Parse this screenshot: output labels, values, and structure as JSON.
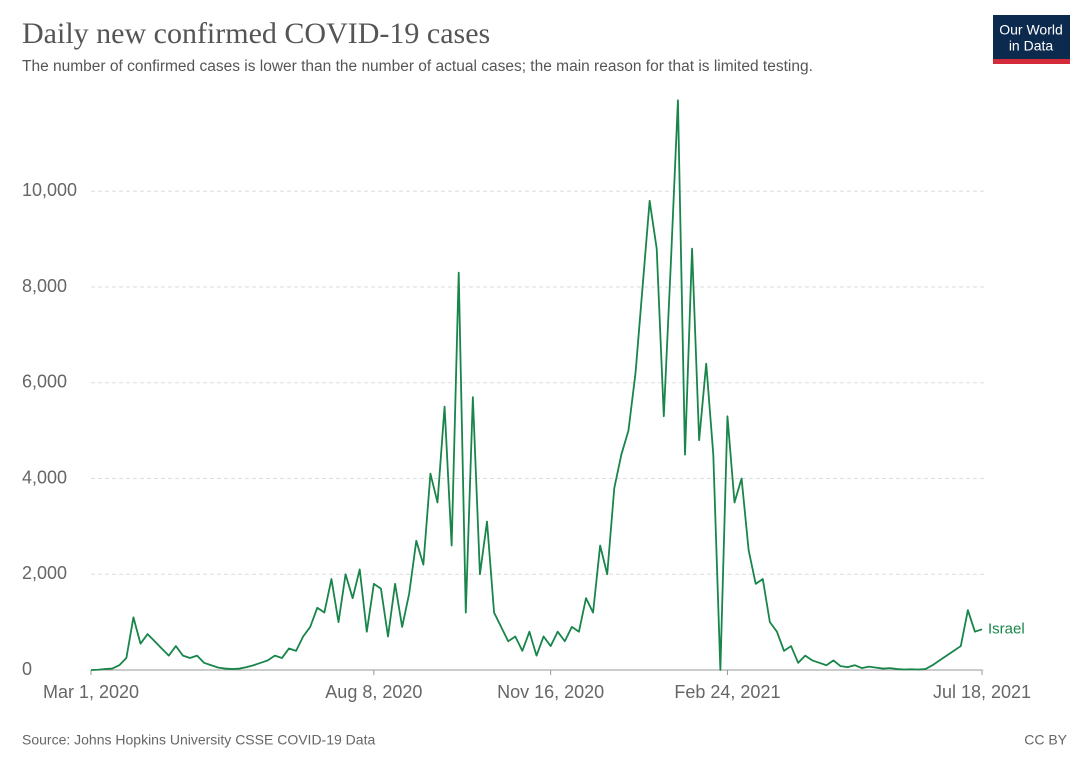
{
  "chart_data": {
    "type": "line",
    "title": "Daily new confirmed COVID-19 cases",
    "subtitle": "The number of confirmed cases is lower than the number of actual cases; the main reason for that is limited testing.",
    "source": "Source: Johns Hopkins University CSSE COVID-19 Data",
    "license": "CC BY",
    "logo": [
      "Our World",
      "in Data"
    ],
    "x": [
      "2020-03-01",
      "2020-03-05",
      "2020-03-09",
      "2020-03-13",
      "2020-03-17",
      "2020-03-21",
      "2020-03-25",
      "2020-03-29",
      "2020-04-02",
      "2020-04-06",
      "2020-04-10",
      "2020-04-14",
      "2020-04-18",
      "2020-04-22",
      "2020-04-26",
      "2020-04-30",
      "2020-05-04",
      "2020-05-08",
      "2020-05-12",
      "2020-05-16",
      "2020-05-20",
      "2020-05-24",
      "2020-05-28",
      "2020-06-01",
      "2020-06-05",
      "2020-06-09",
      "2020-06-13",
      "2020-06-17",
      "2020-06-21",
      "2020-06-25",
      "2020-06-29",
      "2020-07-03",
      "2020-07-07",
      "2020-07-11",
      "2020-07-15",
      "2020-07-19",
      "2020-07-23",
      "2020-07-27",
      "2020-07-31",
      "2020-08-04",
      "2020-08-08",
      "2020-08-12",
      "2020-08-16",
      "2020-08-20",
      "2020-08-24",
      "2020-08-28",
      "2020-09-01",
      "2020-09-05",
      "2020-09-09",
      "2020-09-13",
      "2020-09-17",
      "2020-09-21",
      "2020-09-25",
      "2020-09-29",
      "2020-10-03",
      "2020-10-07",
      "2020-10-11",
      "2020-10-15",
      "2020-10-19",
      "2020-10-23",
      "2020-10-27",
      "2020-10-31",
      "2020-11-04",
      "2020-11-08",
      "2020-11-12",
      "2020-11-16",
      "2020-11-20",
      "2020-11-24",
      "2020-11-28",
      "2020-12-02",
      "2020-12-06",
      "2020-12-10",
      "2020-12-14",
      "2020-12-18",
      "2020-12-22",
      "2020-12-26",
      "2020-12-30",
      "2021-01-03",
      "2021-01-07",
      "2021-01-11",
      "2021-01-15",
      "2021-01-19",
      "2021-01-23",
      "2021-01-27",
      "2021-01-31",
      "2021-02-04",
      "2021-02-08",
      "2021-02-12",
      "2021-02-16",
      "2021-02-20",
      "2021-02-24",
      "2021-02-28",
      "2021-03-04",
      "2021-03-08",
      "2021-03-12",
      "2021-03-16",
      "2021-03-20",
      "2021-03-24",
      "2021-03-28",
      "2021-04-01",
      "2021-04-05",
      "2021-04-09",
      "2021-04-13",
      "2021-04-17",
      "2021-04-21",
      "2021-04-25",
      "2021-04-29",
      "2021-05-03",
      "2021-05-07",
      "2021-05-11",
      "2021-05-15",
      "2021-05-19",
      "2021-05-23",
      "2021-05-27",
      "2021-05-31",
      "2021-06-04",
      "2021-06-08",
      "2021-06-12",
      "2021-06-16",
      "2021-06-20",
      "2021-06-24",
      "2021-06-28",
      "2021-07-02",
      "2021-07-06",
      "2021-07-10",
      "2021-07-14",
      "2021-07-18"
    ],
    "series": [
      {
        "name": "Israel",
        "color": "#18854a",
        "values": [
          0,
          5,
          20,
          30,
          100,
          250,
          1100,
          550,
          750,
          600,
          450,
          300,
          500,
          300,
          250,
          300,
          150,
          100,
          50,
          30,
          20,
          30,
          60,
          100,
          150,
          200,
          300,
          250,
          450,
          400,
          700,
          900,
          1300,
          1200,
          1900,
          1000,
          2000,
          1500,
          2100,
          800,
          1800,
          1700,
          700,
          1800,
          900,
          1600,
          2700,
          2200,
          4100,
          3500,
          5500,
          2600,
          8300,
          1200,
          5700,
          2000,
          3100,
          1200,
          900,
          600,
          700,
          400,
          800,
          300,
          700,
          500,
          800,
          600,
          900,
          800,
          1500,
          1200,
          2600,
          2000,
          3800,
          4500,
          5000,
          6200,
          8000,
          9800,
          8800,
          5300,
          8500,
          11900,
          4500,
          8800,
          4800,
          6400,
          4500,
          0,
          5300,
          3500,
          4000,
          2500,
          1800,
          1900,
          1000,
          800,
          400,
          500,
          150,
          300,
          200,
          150,
          100,
          200,
          80,
          60,
          100,
          40,
          70,
          50,
          30,
          40,
          20,
          10,
          15,
          10,
          20,
          100,
          200,
          300,
          400,
          500,
          1250,
          800,
          850
        ]
      }
    ],
    "xlim": [
      "2020-03-01",
      "2021-07-18"
    ],
    "xticks": [
      {
        "value": "2020-03-01",
        "label": "Mar 1, 2020"
      },
      {
        "value": "2020-08-08",
        "label": "Aug 8, 2020"
      },
      {
        "value": "2020-11-16",
        "label": "Nov 16, 2020"
      },
      {
        "value": "2021-02-24",
        "label": "Feb 24, 2021"
      },
      {
        "value": "2021-07-18",
        "label": "Jul 18, 2021"
      }
    ],
    "ylim": [
      0,
      12000
    ],
    "yticks": [
      0,
      {
        "value": 2000,
        "label": "2,000"
      },
      {
        "value": 4000,
        "label": "4,000"
      },
      {
        "value": 6000,
        "label": "6,000"
      },
      {
        "value": 8000,
        "label": "8,000"
      },
      {
        "value": 10000,
        "label": "10,000"
      }
    ],
    "grid": true
  }
}
